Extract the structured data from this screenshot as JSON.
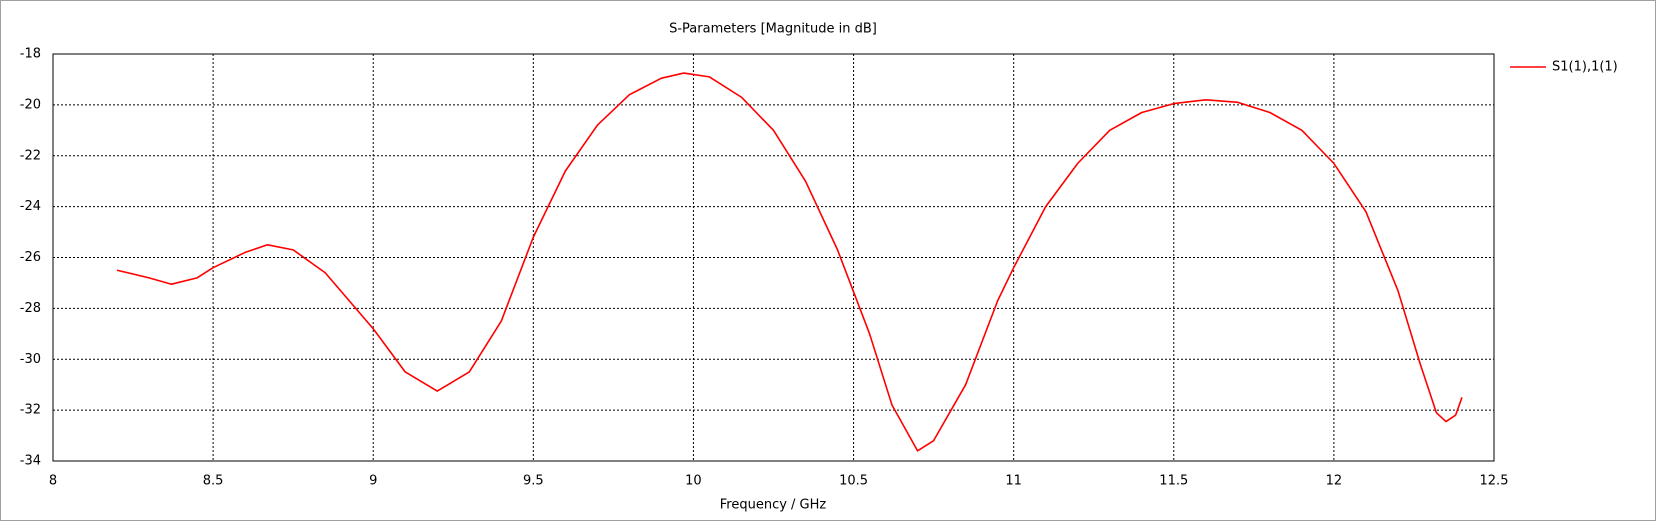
{
  "chart_data": {
    "type": "line",
    "title": "S-Parameters [Magnitude in dB]",
    "x_label": "Frequency / GHz",
    "x": [
      8.2,
      8.3,
      8.37,
      8.45,
      8.5,
      8.6,
      8.67,
      8.75,
      8.85,
      9.0,
      9.1,
      9.2,
      9.3,
      9.4,
      9.5,
      9.6,
      9.7,
      9.8,
      9.9,
      9.97,
      10.05,
      10.15,
      10.25,
      10.35,
      10.45,
      10.55,
      10.62,
      10.7,
      10.75,
      10.85,
      10.95,
      11.0,
      11.1,
      11.2,
      11.3,
      11.4,
      11.5,
      11.6,
      11.7,
      11.8,
      11.9,
      12.0,
      12.1,
      12.2,
      12.27,
      12.32,
      12.35,
      12.38,
      12.4
    ],
    "series": [
      {
        "name": "S1(1),1(1)",
        "color": "#ff0000",
        "values": [
          -26.5,
          -26.8,
          -27.05,
          -26.8,
          -26.4,
          -25.8,
          -25.5,
          -25.7,
          -26.6,
          -28.8,
          -30.5,
          -31.25,
          -30.5,
          -28.5,
          -25.2,
          -22.6,
          -20.8,
          -19.6,
          -18.95,
          -18.75,
          -18.9,
          -19.7,
          -21.0,
          -23.0,
          -25.7,
          -29.0,
          -31.8,
          -33.6,
          -33.2,
          -31.0,
          -27.7,
          -26.4,
          -24.0,
          -22.3,
          -21.0,
          -20.3,
          -19.95,
          -19.8,
          -19.9,
          -20.3,
          -21.0,
          -22.3,
          -24.2,
          -27.3,
          -30.2,
          -32.1,
          -32.45,
          -32.2,
          -31.5
        ]
      }
    ],
    "xlim": [
      8,
      12.5
    ],
    "xticks": [
      8,
      8.5,
      9,
      9.5,
      10,
      10.5,
      11,
      11.5,
      12,
      12.5
    ],
    "ylim": [
      -34,
      -18
    ],
    "yticks": [
      -34,
      -32,
      -30,
      -28,
      -26,
      -24,
      -22,
      -20,
      -18
    ],
    "grid": true,
    "legend": "right"
  }
}
